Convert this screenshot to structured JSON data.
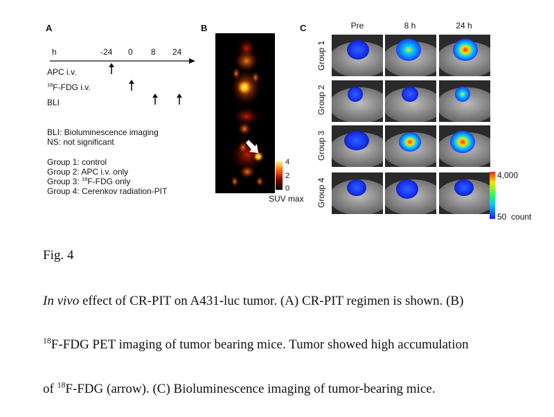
{
  "panel_a": {
    "letter": "A",
    "axis_unit": "h",
    "ticks": [
      "-24",
      "0",
      "8",
      "24"
    ],
    "rows": [
      {
        "label": "APC i.v."
      },
      {
        "label_sup": "18",
        "label": "F-FDG i.v."
      },
      {
        "label": "BLI"
      }
    ],
    "legend": [
      "BLI: Bioluminescence imaging",
      "NS: not significant"
    ],
    "groups": [
      "Group 1: control",
      "Group 2: APC i.v. only",
      "Group 3: ",
      "Group 4: Cerenkov radiation-PIT"
    ],
    "group3_sup": "18",
    "group3_tail": "F-FDG only"
  },
  "panel_b": {
    "letter": "B",
    "colorbar_ticks": [
      "4",
      "2",
      "0"
    ],
    "colorbar_label": "SUV max"
  },
  "panel_c": {
    "letter": "C",
    "columns": [
      "Pre",
      "8 h",
      "24 h"
    ],
    "rows": [
      "Group 1",
      "Group 2",
      "Group 3",
      "Group 4"
    ],
    "colorbar_max": "4,000",
    "colorbar_min": "50  count"
  },
  "caption": {
    "fig_label": "Fig. 4",
    "line1_italic": "In vivo",
    "line1_rest": " effect of CR-PIT on A431-luc tumor. (A) CR-PIT regimen is shown. (B)",
    "line2_sup": "18",
    "line2_rest": "F-FDG PET imaging of tumor bearing mice. Tumor showed high accumulation",
    "line3_a": "of ",
    "line3_sup": "18",
    "line3_rest": "F-FDG (arrow). (C) Bioluminescence imaging of tumor-bearing mice."
  },
  "colors": {
    "pet_low": "#3a0000",
    "pet_mid": "#d43a00",
    "pet_high": "#ffff66",
    "bli_blue": "#1a3cff",
    "bli_cyan": "#00d0ff",
    "bli_yellow": "#ffe000",
    "bli_red": "#ff2000"
  }
}
